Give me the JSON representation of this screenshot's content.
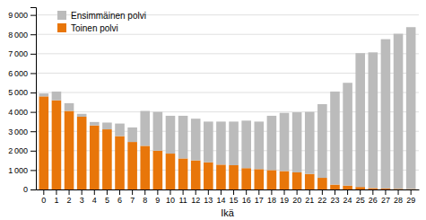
{
  "chart_data": {
    "type": "bar",
    "stacked": true,
    "x_label": "Ikä",
    "categories": [
      "0",
      "1",
      "2",
      "3",
      "4",
      "5",
      "6",
      "7",
      "8",
      "9",
      "10",
      "11",
      "12",
      "13",
      "14",
      "15",
      "16",
      "17",
      "18",
      "19",
      "20",
      "21",
      "22",
      "23",
      "24",
      "25",
      "26",
      "27",
      "28",
      "29"
    ],
    "series": [
      {
        "name": "Toinen polvi",
        "color": "#E8760A",
        "values": [
          4800,
          4600,
          4050,
          3750,
          3300,
          3100,
          2750,
          2450,
          2250,
          2000,
          1850,
          1600,
          1500,
          1400,
          1280,
          1250,
          1100,
          1050,
          1000,
          950,
          880,
          800,
          600,
          250,
          200,
          130,
          70,
          50,
          30,
          20
        ]
      },
      {
        "name": "Ensimmäinen polvi",
        "color": "#BBBBBB",
        "values": [
          150,
          450,
          400,
          150,
          180,
          350,
          650,
          750,
          1800,
          2000,
          1950,
          2200,
          2150,
          2100,
          2220,
          2250,
          2450,
          2450,
          2800,
          3000,
          3100,
          3200,
          3800,
          4800,
          5300,
          6900,
          7000,
          7700,
          8000,
          8350
        ]
      }
    ],
    "ylim": [
      0,
      9400
    ],
    "yticks": [
      0,
      {
        "value": 1000,
        "label": "1 000"
      },
      {
        "value": 2000,
        "label": "2 000"
      },
      {
        "value": 3000,
        "label": "3 000"
      },
      {
        "value": 4000,
        "label": "4 000"
      },
      {
        "value": 5000,
        "label": "5 000"
      },
      {
        "value": 6000,
        "label": "6 000"
      },
      {
        "value": 7000,
        "label": "7 000"
      },
      {
        "value": 8000,
        "label": "8 000"
      },
      {
        "value": 9000,
        "label": "9 000"
      }
    ],
    "grid": true,
    "legend": "upper left"
  }
}
